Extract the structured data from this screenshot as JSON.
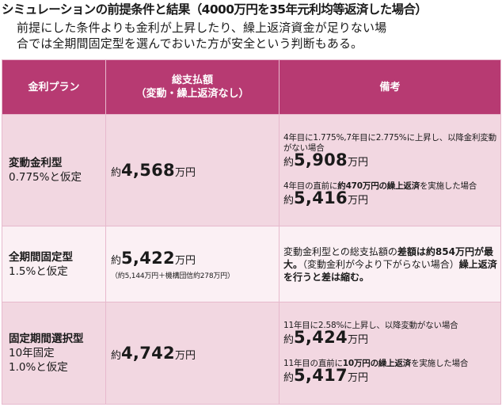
{
  "title": "シミュレーションの前提条件と結果（4000万円を35年元利均等返済した場合）",
  "intro": {
    "line1": "前提にした条件よりも金利が上昇したり、繰上返済資金が足りない場",
    "line2": "合では全期間固定型を選んでおいた方が安全という判断もある。"
  },
  "table": {
    "headers": {
      "plan": "金利プラン",
      "total_line1": "総支払額",
      "total_line2": "（変動・繰上返済なし）",
      "remarks": "備考"
    },
    "rows": [
      {
        "plan_name": "変動金利型",
        "plan_cond": "0.775%と仮定",
        "total_prefix": "約",
        "total_value": "4,568",
        "total_unit": "万円",
        "notes": [
          {
            "text": "4年目に1.775%,7年目に2.775%に上昇し、以降金利変動がない場合",
            "prefix": "約",
            "value": "5,908",
            "unit": "万円"
          },
          {
            "text_pre": "4年目の直前に",
            "text_bold": "約470万円の繰上返済",
            "text_post": "を実施した場合",
            "prefix": "約",
            "value": "5,416",
            "unit": "万円"
          }
        ]
      },
      {
        "plan_name": "全期間固定型",
        "plan_cond": "1.5%と仮定",
        "total_prefix": "約",
        "total_value": "5,422",
        "total_unit": "万円",
        "total_sub": "（約5,144万円＋機構団信約278万円）",
        "remark_pre": "変動金利型との総支払額の",
        "remark_bold1": "差額は約854万円が最大。",
        "remark_mid": "（変動金利が今より下がらない場合）",
        "remark_bold2": "繰上返済を行うと差は縮む。"
      },
      {
        "plan_name": "固定期間選択型",
        "plan_cond1": "10年固定",
        "plan_cond2": "1.0%と仮定",
        "total_prefix": "約",
        "total_value": "4,742",
        "total_unit": "万円",
        "notes": [
          {
            "text": "11年目に2.58%に上昇し、以降変動がない場合",
            "prefix": "約",
            "value": "5,424",
            "unit": "万円"
          },
          {
            "text_pre": "11年目の直前に",
            "text_bold": "10万円の繰上返済",
            "text_post": "を実施した場合",
            "prefix": "約",
            "value": "5,417",
            "unit": "万円"
          }
        ]
      }
    ]
  },
  "colors": {
    "header_bg": "#b73a72",
    "row_pink": "#f2d7e1",
    "row_light": "#fbf0f4"
  }
}
